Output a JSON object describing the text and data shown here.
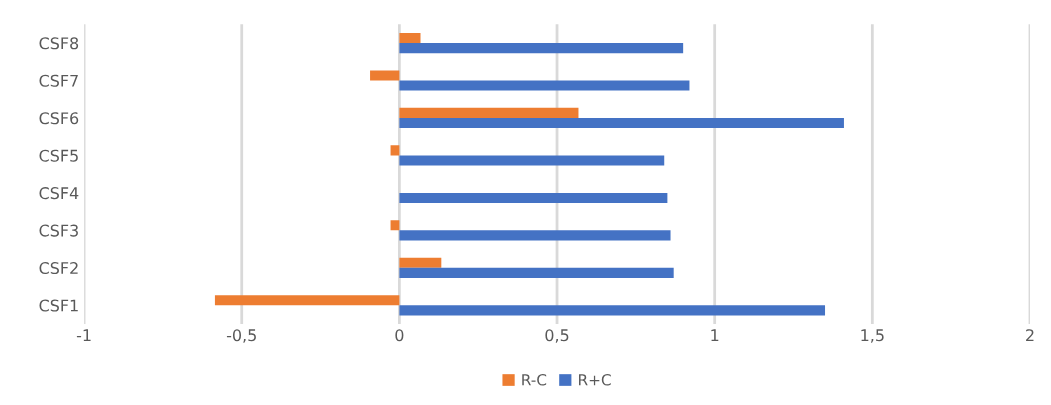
{
  "chart_data": {
    "type": "bar",
    "orientation": "horizontal",
    "categories": [
      "CSF8",
      "CSF7",
      "CSF6",
      "CSF5",
      "CSF4",
      "CSF3",
      "CSF2",
      "CSF1"
    ],
    "series": [
      {
        "name": "R-C",
        "color": "#ed7d31",
        "values": [
          0.067,
          -0.093,
          0.568,
          -0.028,
          0,
          -0.028,
          0.133,
          -0.585
        ]
      },
      {
        "name": "R+C",
        "color": "#4472c4",
        "values": [
          0.9,
          0.92,
          1.41,
          0.84,
          0.85,
          0.86,
          0.87,
          1.35
        ]
      }
    ],
    "xlim": [
      -1,
      2
    ],
    "xticks": [
      {
        "value": -1,
        "label": "-1"
      },
      {
        "value": -0.5,
        "label": "-0,5"
      },
      {
        "value": 0,
        "label": "0"
      },
      {
        "value": 0.5,
        "label": "0,5"
      },
      {
        "value": 1,
        "label": "1"
      },
      {
        "value": 1.5,
        "label": "1,5"
      },
      {
        "value": 2,
        "label": "2"
      }
    ],
    "grid": "x",
    "legend": "bottom"
  }
}
